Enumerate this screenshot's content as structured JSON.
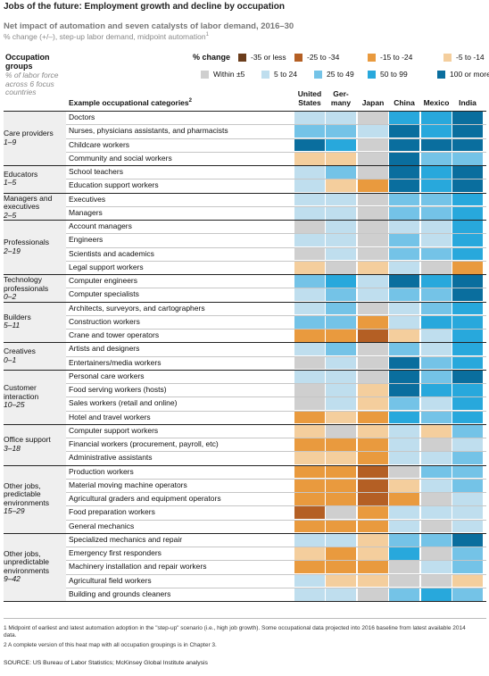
{
  "title": "Jobs of the future: Employment growth and decline by occupation",
  "subtitle": "Net impact of automation and seven catalysts of labor demand, 2016–30",
  "subnote": "% change (+/–), step-up labor demand, midpoint automation",
  "subnote_sup": "1",
  "groups_header": "Occupation groups",
  "groups_subheader": "% of labor force across 6 focus countries",
  "category_header": "Example occupational categories",
  "category_header_sup": "2",
  "legend": {
    "title": "% change",
    "items": [
      {
        "label": "-35 or less",
        "color": "#6b3d1c"
      },
      {
        "label": "-25 to -34",
        "color": "#b45f24"
      },
      {
        "label": "-15 to -24",
        "color": "#e99a3e"
      },
      {
        "label": "-5 to -14",
        "color": "#f4ce9d"
      },
      {
        "label": "Within ±5",
        "color": "#cfcfcf"
      },
      {
        "label": "5 to 24",
        "color": "#bfdeee"
      },
      {
        "label": "25 to 49",
        "color": "#74c3e7"
      },
      {
        "label": "50 to 99",
        "color": "#28a8dc"
      },
      {
        "label": "100 or more",
        "color": "#0a6e9e"
      }
    ]
  },
  "countries": [
    "United States",
    "Ger-many",
    "Japan",
    "China",
    "Mexico",
    "India"
  ],
  "chart_data": {
    "type": "heatmap",
    "title": "Jobs of the future: Employment growth and decline by occupation",
    "columns": [
      "United States",
      "Germany",
      "Japan",
      "China",
      "Mexico",
      "India"
    ],
    "value_legend": [
      "-35 or less",
      "-25 to -34",
      "-15 to -24",
      "-5 to -14",
      "Within ±5",
      "5 to 24",
      "25 to 49",
      "50 to 99",
      "100 or more"
    ],
    "groups": [
      {
        "name": "Care providers",
        "range": "1–9",
        "rows": [
          {
            "label": "Doctors",
            "v": [
              5,
              5,
              4,
              7,
              7,
              8
            ]
          },
          {
            "label": "Nurses, physicians assistants, and pharmacists",
            "v": [
              6,
              6,
              5,
              8,
              7,
              8
            ]
          },
          {
            "label": "Childcare workers",
            "v": [
              8,
              7,
              4,
              8,
              8,
              8
            ]
          },
          {
            "label": "Community and social workers",
            "v": [
              3,
              3,
              4,
              8,
              6,
              6
            ]
          }
        ]
      },
      {
        "name": "Educators",
        "range": "1–5",
        "rows": [
          {
            "label": "School teachers",
            "v": [
              5,
              6,
              4,
              8,
              7,
              8
            ]
          },
          {
            "label": "Education support workers",
            "v": [
              5,
              3,
              2,
              8,
              7,
              8
            ]
          }
        ]
      },
      {
        "name": "Managers and executives",
        "range": "2–5",
        "rows": [
          {
            "label": "Executives",
            "v": [
              5,
              5,
              4,
              6,
              6,
              7
            ]
          },
          {
            "label": "Managers",
            "v": [
              5,
              5,
              4,
              6,
              6,
              7
            ]
          }
        ]
      },
      {
        "name": "Professionals",
        "range": "2–19",
        "rows": [
          {
            "label": "Account managers",
            "v": [
              4,
              5,
              4,
              5,
              5,
              7
            ]
          },
          {
            "label": "Engineers",
            "v": [
              5,
              5,
              4,
              6,
              5,
              7
            ]
          },
          {
            "label": "Scientists and academics",
            "v": [
              4,
              5,
              4,
              6,
              6,
              7
            ]
          },
          {
            "label": "Legal support workers",
            "v": [
              3,
              4,
              3,
              5,
              4,
              2
            ]
          }
        ]
      },
      {
        "name": "Technology professionals",
        "range": "0–2",
        "rows": [
          {
            "label": "Computer engineers",
            "v": [
              6,
              7,
              5,
              8,
              7,
              8
            ]
          },
          {
            "label": "Computer specialists",
            "v": [
              5,
              6,
              5,
              6,
              6,
              8
            ]
          }
        ]
      },
      {
        "name": "Builders",
        "range": "5–11",
        "rows": [
          {
            "label": "Architects, surveyors, and cartographers",
            "v": [
              5,
              6,
              4,
              5,
              6,
              7
            ]
          },
          {
            "label": "Construction workers",
            "v": [
              6,
              6,
              2,
              5,
              7,
              7
            ]
          },
          {
            "label": "Crane and tower operators",
            "v": [
              2,
              2,
              1,
              3,
              5,
              7
            ]
          }
        ]
      },
      {
        "name": "Creatives",
        "range": "0–1",
        "rows": [
          {
            "label": "Artists and designers",
            "v": [
              5,
              6,
              4,
              6,
              5,
              7
            ]
          },
          {
            "label": "Entertainers/media workers",
            "v": [
              4,
              5,
              4,
              8,
              6,
              7
            ]
          }
        ]
      },
      {
        "name": "Customer interaction",
        "range": "10–25",
        "rows": [
          {
            "label": "Personal care workers",
            "v": [
              5,
              5,
              4,
              8,
              6,
              8
            ]
          },
          {
            "label": "Food serving workers (hosts)",
            "v": [
              4,
              5,
              3,
              8,
              7,
              7
            ]
          },
          {
            "label": "Sales workers (retail and online)",
            "v": [
              4,
              5,
              3,
              6,
              5,
              7
            ]
          },
          {
            "label": "Hotel and travel workers",
            "v": [
              2,
              3,
              2,
              7,
              6,
              7
            ]
          }
        ]
      },
      {
        "name": "Office support",
        "range": "3–18",
        "rows": [
          {
            "label": "Computer support workers",
            "v": [
              3,
              4,
              3,
              5,
              3,
              6
            ]
          },
          {
            "label": "Financial workers (procurement, payroll, etc)",
            "v": [
              2,
              2,
              2,
              5,
              4,
              5
            ]
          },
          {
            "label": "Administrative assistants",
            "v": [
              3,
              3,
              2,
              5,
              5,
              6
            ]
          }
        ]
      },
      {
        "name": "Other jobs, predictable environments",
        "range": "15–29",
        "rows": [
          {
            "label": "Production workers",
            "v": [
              2,
              2,
              1,
              4,
              6,
              6
            ]
          },
          {
            "label": "Material moving machine operators",
            "v": [
              2,
              2,
              1,
              3,
              5,
              6
            ]
          },
          {
            "label": "Agricultural graders and equipment operators",
            "v": [
              2,
              2,
              1,
              2,
              4,
              5
            ]
          },
          {
            "label": "Food preparation workers",
            "v": [
              1,
              4,
              2,
              5,
              5,
              5
            ]
          },
          {
            "label": "General mechanics",
            "v": [
              2,
              2,
              2,
              5,
              4,
              5
            ]
          }
        ]
      },
      {
        "name": "Other jobs, unpredictable environments",
        "range": "9–42",
        "rows": [
          {
            "label": "Specialized mechanics and repair",
            "v": [
              5,
              5,
              3,
              6,
              6,
              8
            ]
          },
          {
            "label": "Emergency first responders",
            "v": [
              3,
              2,
              3,
              7,
              4,
              6
            ]
          },
          {
            "label": "Machinery installation and repair workers",
            "v": [
              2,
              2,
              2,
              4,
              5,
              6
            ]
          },
          {
            "label": "Agricultural field workers",
            "v": [
              5,
              3,
              3,
              4,
              4,
              3
            ]
          },
          {
            "label": "Building and grounds cleaners",
            "v": [
              5,
              5,
              4,
              6,
              7,
              6
            ]
          }
        ]
      }
    ]
  },
  "footnotes": [
    "1  Midpoint of earliest and latest automation adoption in the \"step-up\" scenario (i.e., high job growth). Some occupational data projected into 2016 baseline from latest available 2014 data.",
    "2  A complete version of this heat map with all occupation groupings is in Chapter 3."
  ],
  "source": "SOURCE:  US Bureau of Labor Statistics; McKinsey Global Institute analysis"
}
